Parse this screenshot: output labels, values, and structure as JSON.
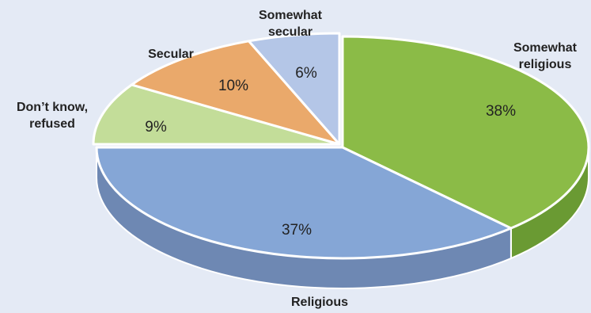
{
  "chart_data": {
    "type": "pie",
    "style": "3d",
    "title": "",
    "slices": [
      {
        "label_lines": [
          "Somewhat",
          "religious"
        ],
        "value": 38,
        "value_label": "38%",
        "color": "#8bbb47",
        "side_color": "#6a9a33"
      },
      {
        "label_lines": [
          "Religious"
        ],
        "value": 37,
        "value_label": "37%",
        "color": "#85a6d6",
        "side_color": "#6e88b3"
      },
      {
        "label_lines": [
          "Don’t know,",
          "refused"
        ],
        "value": 9,
        "value_label": "9%",
        "color": "#c3dd99",
        "side_color": "#a3bd7e"
      },
      {
        "label_lines": [
          "Secular"
        ],
        "value": 10,
        "value_label": "10%",
        "color": "#eaa96b",
        "side_color": "#c98d56"
      },
      {
        "label_lines": [
          "Somewhat",
          "secular"
        ],
        "value": 6,
        "value_label": "6%",
        "color": "#b4c6e7",
        "side_color": "#97a9ca"
      }
    ]
  },
  "colors": {
    "background": "#e4eaf5",
    "slice_border": "#ffffff",
    "text": "#222222"
  }
}
